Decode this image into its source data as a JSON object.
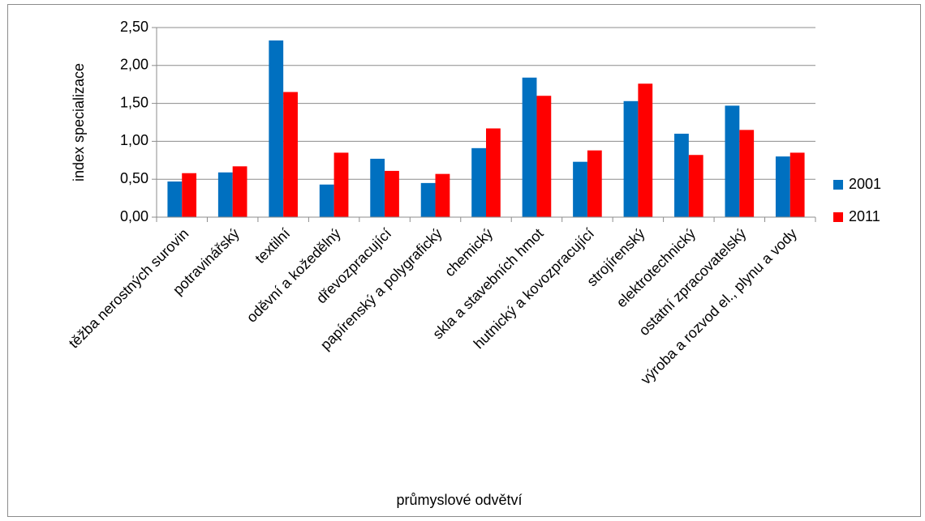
{
  "chart_data": {
    "type": "bar",
    "y_label": "index specializace",
    "x_label": "průmyslové odvětví",
    "categories": [
      "těžba nerostných surovin",
      "potravinářský",
      "textilní",
      "oděvní a kožedělný",
      "dřevozpracující",
      "papírenský a polygrafický",
      "chemický",
      "skla a stavebních hmot",
      "hutnický a kovozpracující",
      "strojírenský",
      "elektrotechnický",
      "ostatní zpracovatelský",
      "výroba a rozvod el., plynu a vody"
    ],
    "series": [
      {
        "name": "2001",
        "color": "#0070c0",
        "values": [
          0.47,
          0.59,
          2.33,
          0.43,
          0.77,
          0.45,
          0.91,
          1.84,
          0.73,
          1.53,
          1.1,
          1.47,
          0.8
        ]
      },
      {
        "name": "2011",
        "color": "#ff0000",
        "values": [
          0.58,
          0.67,
          1.65,
          0.85,
          0.61,
          0.57,
          1.17,
          1.6,
          0.88,
          1.76,
          0.82,
          1.15,
          0.85
        ]
      }
    ],
    "ylim": [
      0,
      2.5
    ],
    "yticks": [
      {
        "value": 0,
        "label": "0,00"
      },
      {
        "value": 0.5,
        "label": "0,50"
      },
      {
        "value": 1,
        "label": "1,00"
      },
      {
        "value": 1.5,
        "label": "1,50"
      },
      {
        "value": 2,
        "label": "2,00"
      },
      {
        "value": 2.5,
        "label": "2,50"
      }
    ],
    "grid": true,
    "legend": "right"
  }
}
